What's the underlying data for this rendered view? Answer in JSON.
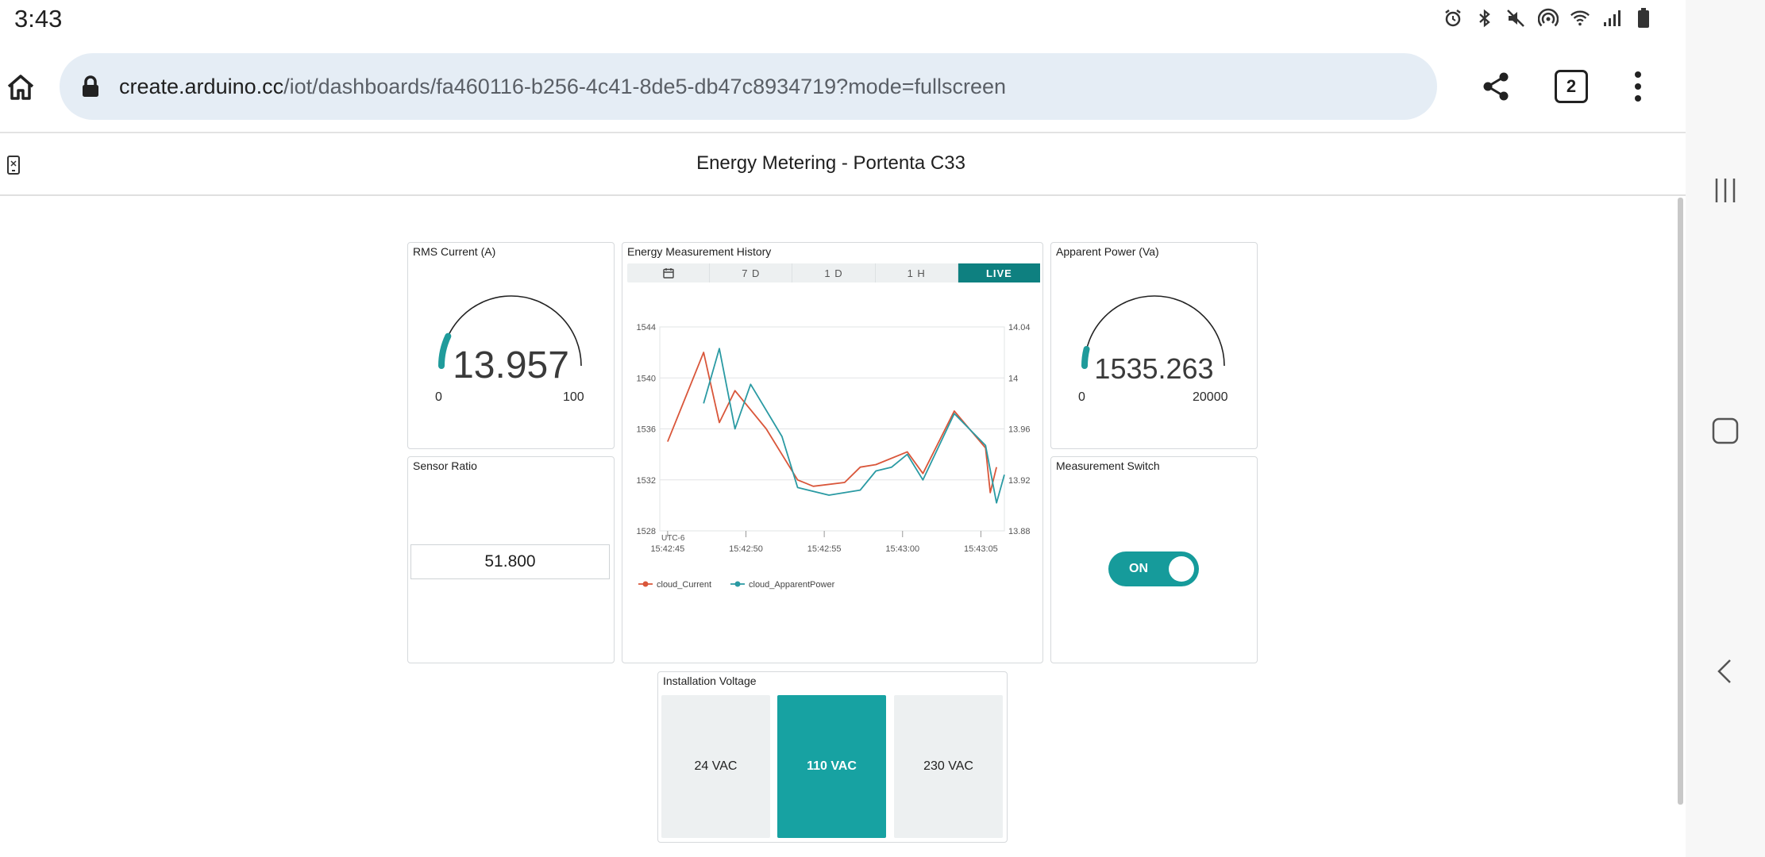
{
  "status_bar": {
    "time": "3:43",
    "icons": [
      "alarm-icon",
      "bluetooth-icon",
      "mute-icon",
      "hotspot-icon",
      "wifi-icon",
      "signal-icon",
      "battery-icon"
    ]
  },
  "browser": {
    "url_host": "create.arduino.cc",
    "url_path": "/iot/dashboards/fa460116-b256-4c41-8de5-db47c8934719?mode=fullscreen",
    "tab_count": "2"
  },
  "dashboard": {
    "title": "Energy Metering - Portenta C33",
    "rms_current": {
      "title": "RMS Current (A)",
      "value": "13.957",
      "min": "0",
      "max": "100",
      "fill_fraction": 0.1396
    },
    "apparent_power": {
      "title": "Apparent Power (Va)",
      "value": "1535.263",
      "min": "0",
      "max": "20000",
      "fill_fraction": 0.0768
    },
    "sensor_ratio": {
      "title": "Sensor Ratio",
      "value": "51.800"
    },
    "measurement_switch": {
      "title": "Measurement Switch",
      "state": "ON"
    },
    "installation_voltage": {
      "title": "Installation Voltage",
      "options": [
        "24 VAC",
        "110 VAC",
        "230 VAC"
      ],
      "selected": "110 VAC"
    },
    "history": {
      "title": "Energy Measurement History",
      "range_tabs": [
        "7 D",
        "1 D",
        "1 H",
        "LIVE"
      ],
      "active_tab": "LIVE",
      "timezone": "UTC-6"
    }
  },
  "colors": {
    "accent": "#169b9b",
    "tab_active": "#0e8080",
    "series_current": "#d9563a",
    "series_power": "#2a9aa3"
  },
  "chart_data": {
    "type": "line",
    "x_ticks": [
      "15:42:45",
      "15:42:50",
      "15:42:55",
      "15:43:00",
      "15:43:05"
    ],
    "y_left_ticks": [
      "1544",
      "1540",
      "1536",
      "1532",
      "1528"
    ],
    "y_right_ticks": [
      "14.04",
      "14",
      "13.96",
      "13.92",
      "13.88"
    ],
    "y_left_range": [
      1528,
      1544
    ],
    "y_right_range": [
      13.88,
      14.04
    ],
    "x_range_seconds": [
      -0.5,
      21.5
    ],
    "grid": true,
    "legend_position": "bottom-left",
    "series": [
      {
        "name": "cloud_Current",
        "axis": "right",
        "x_seconds": [
          0,
          2.3,
          3.3,
          4.3,
          6.3,
          8.3,
          9.3,
          11.3,
          12.3,
          13.3,
          15.3,
          16.3,
          18.3,
          20.3,
          20.6,
          21.0
        ],
        "values": [
          13.95,
          14.02,
          13.965,
          13.99,
          13.96,
          13.92,
          13.915,
          13.918,
          13.93,
          13.932,
          13.942,
          13.925,
          13.974,
          13.945,
          13.91,
          13.93
        ]
      },
      {
        "name": "cloud_ApparentPower",
        "axis": "left",
        "x_seconds": [
          2.3,
          3.3,
          4.3,
          5.3,
          7.3,
          8.3,
          10.3,
          12.3,
          13.3,
          14.3,
          15.3,
          16.3,
          18.3,
          20.3,
          21.0,
          21.5
        ],
        "values": [
          1538.0,
          1542.3,
          1536.0,
          1539.5,
          1535.4,
          1531.4,
          1530.8,
          1531.2,
          1532.7,
          1533.0,
          1534.0,
          1532.0,
          1537.2,
          1534.7,
          1530.2,
          1532.4
        ]
      }
    ]
  }
}
